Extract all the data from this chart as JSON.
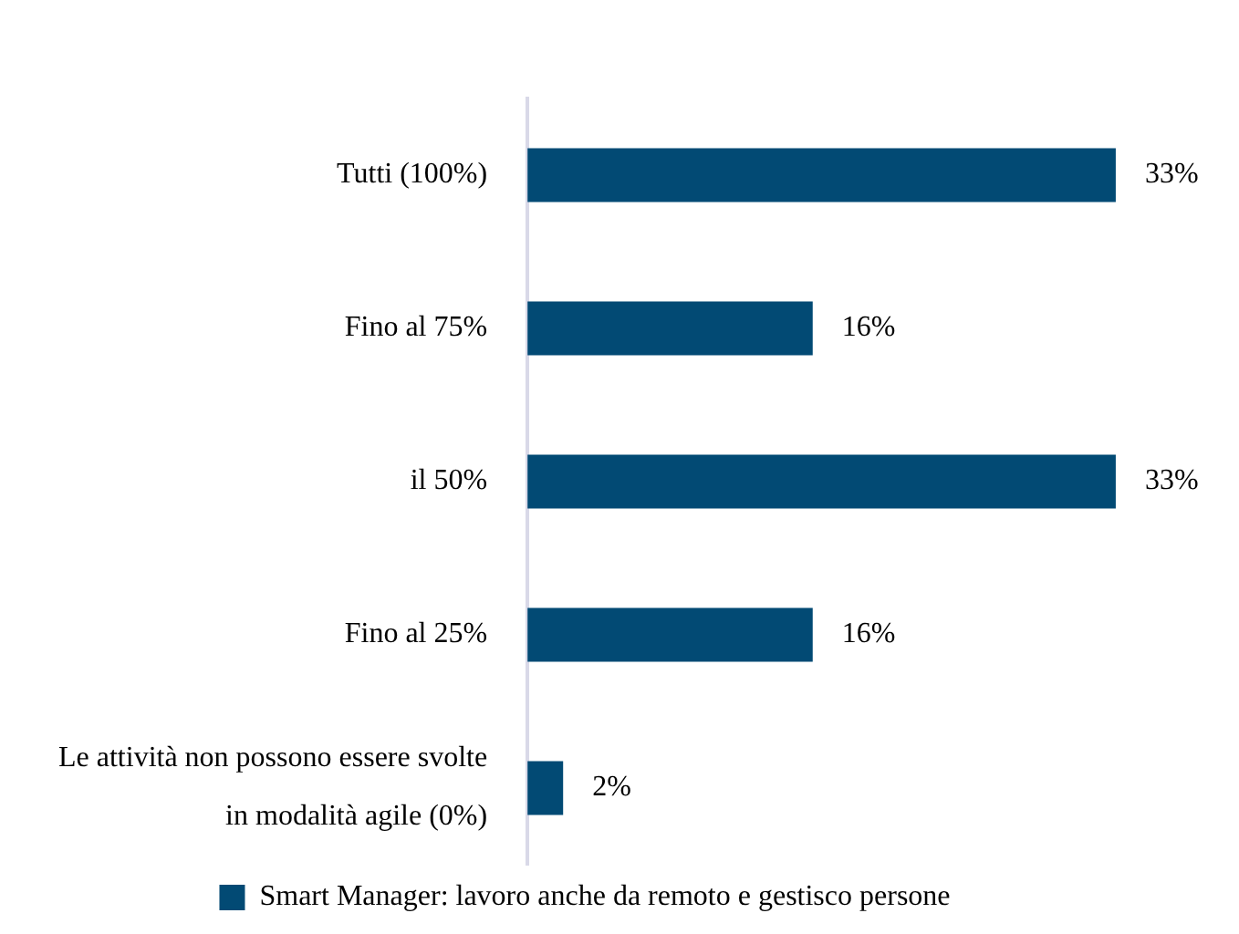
{
  "chart_data": {
    "type": "bar",
    "orientation": "horizontal",
    "categories": [
      "Tutti (100%)",
      "Fino al 75%",
      "il 50%",
      "Fino al 25%",
      "Le attività non possono essere svolte in modalità agile (0%)"
    ],
    "series": [
      {
        "name": "Smart Manager: lavoro anche da remoto e gestisco persone",
        "color": "#024a74",
        "values": [
          33,
          16,
          33,
          16,
          2
        ],
        "value_labels": [
          "33%",
          "16%",
          "33%",
          "16%",
          "2%"
        ]
      }
    ],
    "legend": "bottom",
    "grid": false
  }
}
